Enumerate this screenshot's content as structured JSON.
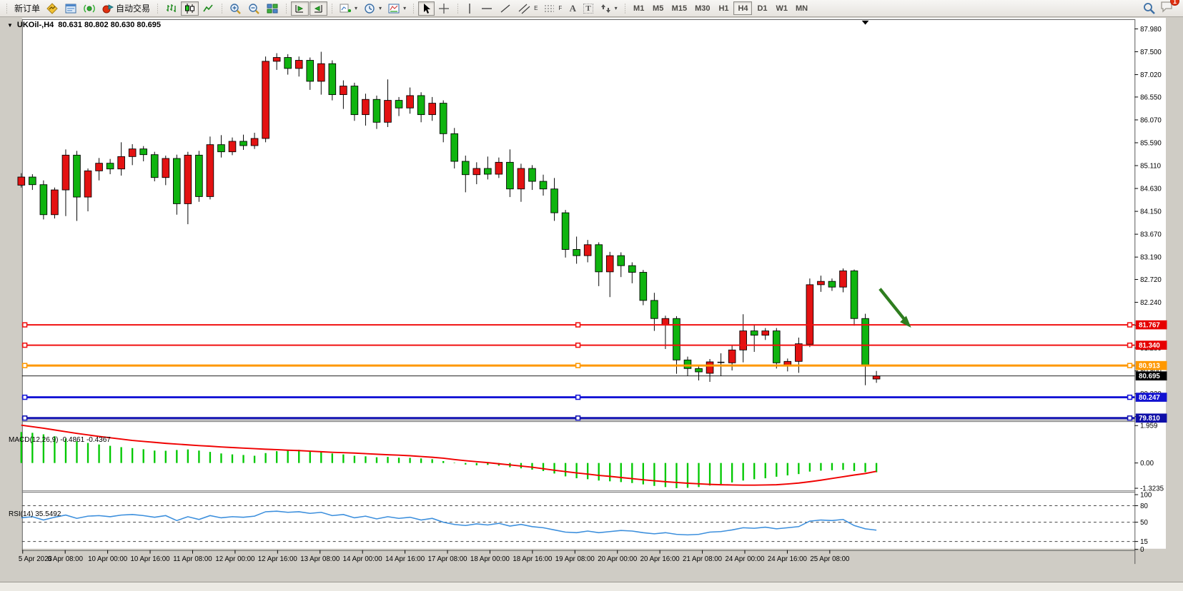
{
  "toolbar": {
    "new_order": "新订单",
    "auto_trading": "自动交易",
    "timeframes": [
      "M1",
      "M5",
      "M15",
      "M30",
      "H1",
      "H4",
      "D1",
      "W1",
      "MN"
    ],
    "active_timeframe": "H4",
    "notification_badge": "1",
    "glyphs": {
      "caret": "▾",
      "letter_a": "A",
      "letter_t": "T",
      "sub_e": "E",
      "sub_f": "F",
      "title_caret": "▼",
      "shift_marker": "▼"
    }
  },
  "chart": {
    "title": "UKOil-,H4",
    "ohlc": "80.631 80.802 80.630 80.695",
    "price_ticks": [
      "87.980",
      "87.500",
      "87.020",
      "86.550",
      "86.070",
      "85.590",
      "85.110",
      "84.630",
      "84.150",
      "83.670",
      "83.190",
      "82.720",
      "82.240",
      "81.760",
      "81.280",
      "80.800",
      "80.320",
      "79.840"
    ],
    "hlines": [
      {
        "price": 81.767,
        "label": "81.767",
        "color": "#f01010",
        "bg": "#e60000",
        "width": 2,
        "handles": true
      },
      {
        "price": 81.34,
        "label": "81.340",
        "color": "#f01010",
        "bg": "#e60000",
        "width": 2,
        "handles": true
      },
      {
        "price": 80.913,
        "label": "80.913",
        "color": "#ff9800",
        "bg": "#ff9800",
        "width": 3,
        "handles": true
      },
      {
        "price": 80.695,
        "label": "80.695",
        "color": "#000000",
        "bg": "#000000",
        "width": 1,
        "handles": false
      },
      {
        "price": 80.247,
        "label": "80.247",
        "color": "#1515d6",
        "bg": "#1212d0",
        "width": 3,
        "handles": true
      },
      {
        "price": 79.81,
        "label": "79.810",
        "color": "#1111b0",
        "bg": "#0f0fa8",
        "width": 3,
        "handles": true
      }
    ],
    "colors": {
      "up": "#e31212",
      "down": "#0fb40f",
      "wick": "#000000",
      "macd_hist": "#00c800",
      "macd_signal": "#f00000",
      "rsi_line": "#3c8fdd",
      "arrow": "#2e7d1f"
    },
    "candles": [
      [
        84.7,
        84.95,
        84.65,
        84.87
      ],
      [
        84.87,
        84.93,
        84.6,
        84.71
      ],
      [
        84.71,
        84.8,
        83.98,
        84.08
      ],
      [
        84.08,
        84.65,
        84.0,
        84.6
      ],
      [
        84.6,
        85.45,
        84.05,
        85.33
      ],
      [
        85.33,
        85.42,
        83.95,
        84.45
      ],
      [
        84.45,
        85.05,
        84.15,
        85.0
      ],
      [
        85.0,
        85.27,
        84.8,
        85.16
      ],
      [
        85.16,
        85.25,
        84.93,
        85.04
      ],
      [
        85.04,
        85.6,
        84.9,
        85.3
      ],
      [
        85.3,
        85.56,
        85.12,
        85.46
      ],
      [
        85.46,
        85.52,
        85.2,
        85.34
      ],
      [
        85.34,
        85.4,
        84.78,
        84.86
      ],
      [
        84.86,
        85.32,
        84.7,
        85.26
      ],
      [
        85.26,
        85.34,
        84.08,
        84.31
      ],
      [
        84.31,
        85.4,
        83.88,
        85.33
      ],
      [
        85.33,
        85.42,
        84.35,
        84.46
      ],
      [
        84.46,
        85.72,
        84.4,
        85.55
      ],
      [
        85.55,
        85.75,
        85.28,
        85.4
      ],
      [
        85.4,
        85.7,
        85.33,
        85.62
      ],
      [
        85.62,
        85.76,
        85.44,
        85.53
      ],
      [
        85.53,
        85.8,
        85.46,
        85.68
      ],
      [
        85.68,
        87.4,
        85.6,
        87.3
      ],
      [
        87.3,
        87.47,
        87.12,
        87.38
      ],
      [
        87.38,
        87.45,
        87.02,
        87.15
      ],
      [
        87.15,
        87.4,
        86.98,
        87.32
      ],
      [
        87.32,
        87.38,
        86.7,
        86.88
      ],
      [
        86.88,
        87.5,
        86.6,
        87.25
      ],
      [
        87.25,
        87.32,
        86.48,
        86.6
      ],
      [
        86.6,
        86.9,
        86.3,
        86.78
      ],
      [
        86.78,
        86.85,
        86.05,
        86.18
      ],
      [
        86.18,
        86.62,
        85.95,
        86.5
      ],
      [
        86.5,
        86.58,
        85.88,
        86.02
      ],
      [
        86.02,
        86.92,
        85.92,
        86.48
      ],
      [
        86.48,
        86.55,
        86.15,
        86.32
      ],
      [
        86.32,
        86.75,
        86.2,
        86.58
      ],
      [
        86.58,
        86.65,
        86.02,
        86.18
      ],
      [
        86.18,
        86.55,
        86.05,
        86.42
      ],
      [
        86.42,
        86.48,
        85.6,
        85.78
      ],
      [
        85.78,
        85.9,
        85.05,
        85.2
      ],
      [
        85.2,
        85.32,
        84.55,
        84.92
      ],
      [
        84.92,
        85.18,
        84.72,
        85.05
      ],
      [
        85.05,
        85.3,
        84.82,
        84.93
      ],
      [
        84.93,
        85.28,
        84.85,
        85.18
      ],
      [
        85.18,
        85.45,
        84.45,
        84.62
      ],
      [
        84.62,
        85.15,
        84.35,
        85.05
      ],
      [
        85.05,
        85.12,
        84.6,
        84.78
      ],
      [
        84.78,
        84.92,
        84.48,
        84.62
      ],
      [
        84.62,
        84.85,
        83.95,
        84.12
      ],
      [
        84.12,
        84.18,
        83.18,
        83.35
      ],
      [
        83.35,
        83.62,
        83.05,
        83.22
      ],
      [
        83.22,
        83.55,
        83.08,
        83.45
      ],
      [
        83.45,
        83.5,
        82.58,
        82.88
      ],
      [
        82.88,
        83.3,
        82.35,
        83.22
      ],
      [
        83.22,
        83.29,
        82.77,
        83.01
      ],
      [
        83.01,
        83.08,
        82.64,
        82.87
      ],
      [
        82.87,
        82.92,
        82.18,
        82.28
      ],
      [
        82.28,
        82.44,
        81.64,
        81.9
      ],
      [
        81.76,
        81.96,
        81.26,
        81.9
      ],
      [
        81.9,
        81.95,
        80.74,
        81.03
      ],
      [
        81.03,
        81.1,
        80.7,
        80.85
      ],
      [
        80.85,
        80.92,
        80.6,
        80.78
      ],
      [
        80.75,
        81.05,
        80.57,
        80.99
      ],
      [
        80.98,
        81.17,
        80.69,
        80.98
      ],
      [
        80.97,
        81.33,
        80.81,
        81.24
      ],
      [
        81.24,
        81.99,
        80.98,
        81.64
      ],
      [
        81.64,
        81.78,
        81.2,
        81.55
      ],
      [
        81.55,
        81.7,
        81.45,
        81.64
      ],
      [
        81.64,
        81.7,
        80.85,
        80.97
      ],
      [
        80.9,
        81.06,
        80.79,
        81.0
      ],
      [
        81.0,
        81.5,
        80.76,
        81.37
      ],
      [
        81.36,
        82.74,
        81.3,
        82.61
      ],
      [
        82.61,
        82.8,
        82.46,
        82.68
      ],
      [
        82.68,
        82.74,
        82.48,
        82.56
      ],
      [
        82.56,
        82.95,
        82.45,
        82.9
      ],
      [
        82.9,
        82.93,
        81.75,
        81.9
      ],
      [
        81.9,
        82.0,
        80.5,
        80.91
      ],
      [
        80.63,
        80.8,
        80.55,
        80.695
      ]
    ],
    "dates": [
      "5 Apr 2023",
      "6 Apr 08:00",
      "10 Apr 00:00",
      "10 Apr 16:00",
      "11 Apr 08:00",
      "12 Apr 00:00",
      "12 Apr 16:00",
      "13 Apr 08:00",
      "14 Apr 00:00",
      "14 Apr 16:00",
      "17 Apr 08:00",
      "18 Apr 00:00",
      "18 Apr 16:00",
      "19 Apr 08:00",
      "20 Apr 00:00",
      "20 Apr 16:00",
      "21 Apr 08:00",
      "24 Apr 00:00",
      "24 Apr 16:00",
      "25 Apr 08:00"
    ]
  },
  "macd": {
    "text": "MACD(12,26,9) -0.4861 -0.4367",
    "axis": [
      "1.959",
      "0.00",
      "-1.3235"
    ],
    "hist": [
      1.62,
      1.58,
      1.5,
      1.4,
      1.28,
      1.14,
      1.05,
      0.97,
      0.9,
      0.83,
      0.78,
      0.72,
      0.65,
      0.64,
      0.68,
      0.71,
      0.65,
      0.58,
      0.5,
      0.45,
      0.42,
      0.38,
      0.52,
      0.62,
      0.66,
      0.69,
      0.64,
      0.58,
      0.5,
      0.45,
      0.38,
      0.35,
      0.3,
      0.32,
      0.28,
      0.27,
      0.24,
      0.2,
      0.1,
      0.02,
      -0.08,
      -0.12,
      -0.1,
      -0.14,
      -0.22,
      -0.28,
      -0.35,
      -0.42,
      -0.55,
      -0.7,
      -0.8,
      -0.85,
      -0.92,
      -0.96,
      -1.0,
      -1.05,
      -1.12,
      -1.2,
      -1.26,
      -1.32,
      -1.3,
      -1.26,
      -1.18,
      -1.1,
      -1.02,
      -0.92,
      -0.85,
      -0.8,
      -0.72,
      -0.65,
      -0.58,
      -0.45,
      -0.4,
      -0.38,
      -0.36,
      -0.42,
      -0.48,
      -0.4861
    ],
    "signal": [
      1.98,
      1.9,
      1.82,
      1.73,
      1.64,
      1.55,
      1.47,
      1.39,
      1.32,
      1.25,
      1.18,
      1.13,
      1.08,
      1.03,
      0.99,
      0.95,
      0.91,
      0.88,
      0.84,
      0.81,
      0.78,
      0.75,
      0.72,
      0.7,
      0.67,
      0.65,
      0.62,
      0.59,
      0.56,
      0.54,
      0.52,
      0.49,
      0.46,
      0.43,
      0.41,
      0.38,
      0.34,
      0.3,
      0.25,
      0.18,
      0.12,
      0.07,
      0.02,
      -0.04,
      -0.1,
      -0.16,
      -0.22,
      -0.3,
      -0.38,
      -0.45,
      -0.52,
      -0.58,
      -0.65,
      -0.7,
      -0.76,
      -0.82,
      -0.88,
      -0.93,
      -0.98,
      -1.02,
      -1.06,
      -1.09,
      -1.12,
      -1.14,
      -1.15,
      -1.16,
      -1.16,
      -1.15,
      -1.14,
      -1.1,
      -1.05,
      -0.98,
      -0.9,
      -0.81,
      -0.72,
      -0.63,
      -0.55,
      -0.4367
    ]
  },
  "rsi": {
    "text": "RSI(14) 35.5492",
    "axis": [
      "100",
      "80",
      "50",
      "15",
      "0"
    ],
    "levels": [
      80,
      50,
      15
    ],
    "values": [
      58,
      60,
      54,
      59,
      63,
      57,
      61,
      62,
      60,
      63,
      64,
      62,
      59,
      62,
      53,
      60,
      55,
      62,
      58,
      60,
      59,
      61,
      69,
      70,
      68,
      69,
      66,
      68,
      62,
      64,
      58,
      61,
      56,
      60,
      57,
      59,
      54,
      57,
      50,
      46,
      44,
      47,
      45,
      48,
      43,
      46,
      42,
      40,
      36,
      32,
      31,
      34,
      31,
      33,
      35,
      34,
      31,
      29,
      31,
      28,
      27,
      28,
      32,
      33,
      36,
      40,
      39,
      41,
      38,
      40,
      42,
      52,
      54,
      53,
      55,
      44,
      38,
      35.55
    ]
  }
}
